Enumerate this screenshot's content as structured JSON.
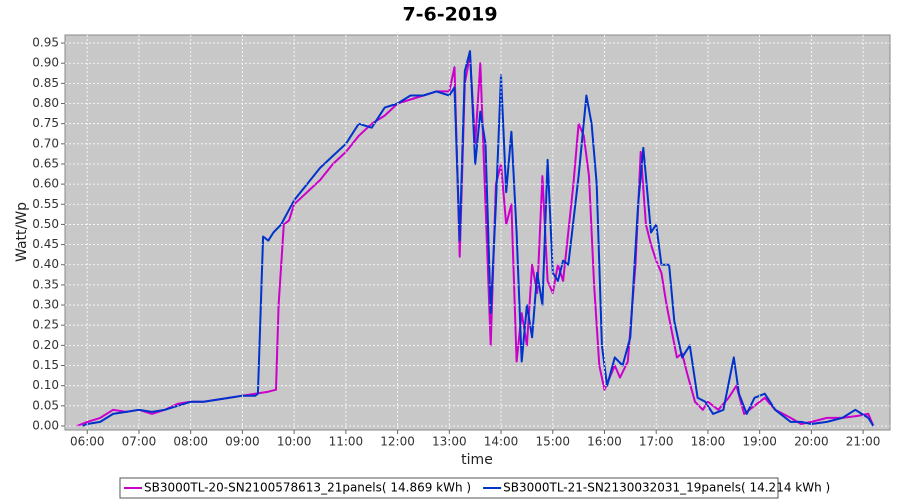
{
  "chart_data": {
    "type": "line",
    "title": "7-6-2019",
    "x_label": "time",
    "y_label": "Watt/Wp",
    "xlim": [
      5.57,
      21.52
    ],
    "ylim": [
      -0.01,
      0.97
    ],
    "grid": true,
    "legend": "bottom",
    "xticks": [
      {
        "value": 6,
        "label": "06:00"
      },
      {
        "value": 7,
        "label": "07:00"
      },
      {
        "value": 8,
        "label": "08:00"
      },
      {
        "value": 9,
        "label": "09:00"
      },
      {
        "value": 10,
        "label": "10:00"
      },
      {
        "value": 11,
        "label": "11:00"
      },
      {
        "value": 12,
        "label": "12:00"
      },
      {
        "value": 13,
        "label": "13:00"
      },
      {
        "value": 14,
        "label": "14:00"
      },
      {
        "value": 15,
        "label": "15:00"
      },
      {
        "value": 16,
        "label": "16:00"
      },
      {
        "value": 17,
        "label": "17:00"
      },
      {
        "value": 18,
        "label": "18:00"
      },
      {
        "value": 19,
        "label": "19:00"
      },
      {
        "value": 20,
        "label": "20:00"
      },
      {
        "value": 21,
        "label": "21:00"
      }
    ],
    "yticks": [
      {
        "value": 0,
        "label": "0.00"
      },
      0.05,
      {
        "value": 0.1,
        "label": "0.10"
      },
      0.15,
      {
        "value": 0.2,
        "label": "0.20"
      },
      0.25,
      {
        "value": 0.3,
        "label": "0.30"
      },
      0.35,
      {
        "value": 0.4,
        "label": "0.40"
      },
      0.45,
      {
        "value": 0.5,
        "label": "0.50"
      },
      0.55,
      {
        "value": 0.6,
        "label": "0.60"
      },
      0.65,
      {
        "value": 0.7,
        "label": "0.70"
      },
      0.75,
      {
        "value": 0.8,
        "label": "0.80"
      },
      0.85,
      {
        "value": 0.9,
        "label": "0.90"
      },
      0.95
    ],
    "series": [
      {
        "name": "SB3000TL-20-SN2100578613_21panels( 14.869 kWh )",
        "color": "#cc00cc",
        "x": [
          5.8,
          6.0,
          6.25,
          6.5,
          6.75,
          7.0,
          7.25,
          7.5,
          7.75,
          8.0,
          8.25,
          8.5,
          8.75,
          9.0,
          9.25,
          9.5,
          9.65,
          9.7,
          9.8,
          9.9,
          10.0,
          10.25,
          10.5,
          10.75,
          11.0,
          11.25,
          11.5,
          11.75,
          12.0,
          12.25,
          12.5,
          12.75,
          13.0,
          13.1,
          13.2,
          13.3,
          13.4,
          13.5,
          13.6,
          13.7,
          13.8,
          13.9,
          14.0,
          14.1,
          14.2,
          14.3,
          14.4,
          14.5,
          14.6,
          14.7,
          14.8,
          14.9,
          15.0,
          15.1,
          15.2,
          15.4,
          15.5,
          15.6,
          15.7,
          15.8,
          15.9,
          16.0,
          16.2,
          16.3,
          16.45,
          16.6,
          16.7,
          16.8,
          16.9,
          17.0,
          17.1,
          17.2,
          17.4,
          17.5,
          17.6,
          17.75,
          17.9,
          18.0,
          18.2,
          18.4,
          18.55,
          18.7,
          18.9,
          19.1,
          19.3,
          19.6,
          19.8,
          20.0,
          20.3,
          20.6,
          20.9,
          21.1,
          21.2
        ],
        "values": [
          0,
          0.01,
          0.02,
          0.04,
          0.035,
          0.04,
          0.03,
          0.04,
          0.055,
          0.06,
          0.06,
          0.065,
          0.07,
          0.075,
          0.08,
          0.085,
          0.09,
          0.3,
          0.5,
          0.51,
          0.55,
          0.58,
          0.61,
          0.65,
          0.68,
          0.72,
          0.75,
          0.77,
          0.8,
          0.81,
          0.82,
          0.83,
          0.83,
          0.89,
          0.42,
          0.85,
          0.92,
          0.7,
          0.9,
          0.55,
          0.2,
          0.6,
          0.65,
          0.5,
          0.55,
          0.16,
          0.28,
          0.2,
          0.4,
          0.33,
          0.62,
          0.36,
          0.33,
          0.4,
          0.36,
          0.6,
          0.75,
          0.72,
          0.62,
          0.35,
          0.15,
          0.09,
          0.15,
          0.12,
          0.16,
          0.4,
          0.68,
          0.5,
          0.45,
          0.41,
          0.38,
          0.3,
          0.17,
          0.18,
          0.13,
          0.06,
          0.04,
          0.06,
          0.04,
          0.07,
          0.1,
          0.03,
          0.05,
          0.07,
          0.04,
          0.02,
          0.005,
          0.01,
          0.02,
          0.02,
          0.025,
          0.03,
          0
        ]
      },
      {
        "name": "SB3000TL-21-SN2130032031_19panels( 14.214 kWh )",
        "color": "#0033cc",
        "x": [
          5.9,
          6.0,
          6.25,
          6.5,
          6.75,
          7.0,
          7.25,
          7.5,
          7.75,
          8.0,
          8.25,
          8.5,
          8.75,
          9.0,
          9.25,
          9.3,
          9.4,
          9.5,
          9.6,
          9.75,
          10.0,
          10.25,
          10.5,
          10.75,
          11.0,
          11.25,
          11.5,
          11.75,
          12.0,
          12.25,
          12.5,
          12.75,
          13.0,
          13.1,
          13.2,
          13.3,
          13.4,
          13.5,
          13.6,
          13.7,
          13.8,
          13.9,
          14.0,
          14.1,
          14.2,
          14.3,
          14.4,
          14.5,
          14.6,
          14.7,
          14.8,
          14.9,
          15.0,
          15.1,
          15.2,
          15.3,
          15.5,
          15.65,
          15.75,
          15.85,
          15.95,
          16.05,
          16.2,
          16.35,
          16.5,
          16.65,
          16.75,
          16.9,
          17.0,
          17.1,
          17.25,
          17.35,
          17.5,
          17.65,
          17.8,
          17.95,
          18.1,
          18.3,
          18.5,
          18.6,
          18.75,
          18.9,
          19.1,
          19.3,
          19.6,
          19.8,
          20.0,
          20.3,
          20.6,
          20.85,
          21.1,
          21.2
        ],
        "values": [
          0,
          0.005,
          0.01,
          0.03,
          0.035,
          0.04,
          0.035,
          0.04,
          0.05,
          0.06,
          0.06,
          0.065,
          0.07,
          0.075,
          0.075,
          0.08,
          0.47,
          0.46,
          0.48,
          0.5,
          0.56,
          0.6,
          0.64,
          0.67,
          0.7,
          0.75,
          0.74,
          0.79,
          0.8,
          0.82,
          0.82,
          0.83,
          0.82,
          0.84,
          0.46,
          0.88,
          0.93,
          0.65,
          0.78,
          0.7,
          0.28,
          0.55,
          0.87,
          0.58,
          0.73,
          0.48,
          0.16,
          0.3,
          0.22,
          0.38,
          0.3,
          0.66,
          0.38,
          0.36,
          0.41,
          0.4,
          0.62,
          0.82,
          0.75,
          0.6,
          0.2,
          0.1,
          0.17,
          0.15,
          0.22,
          0.55,
          0.69,
          0.48,
          0.5,
          0.4,
          0.4,
          0.26,
          0.17,
          0.2,
          0.07,
          0.06,
          0.03,
          0.04,
          0.17,
          0.08,
          0.03,
          0.07,
          0.08,
          0.04,
          0.01,
          0.01,
          0.005,
          0.01,
          0.02,
          0.04,
          0.02,
          0
        ]
      }
    ]
  }
}
